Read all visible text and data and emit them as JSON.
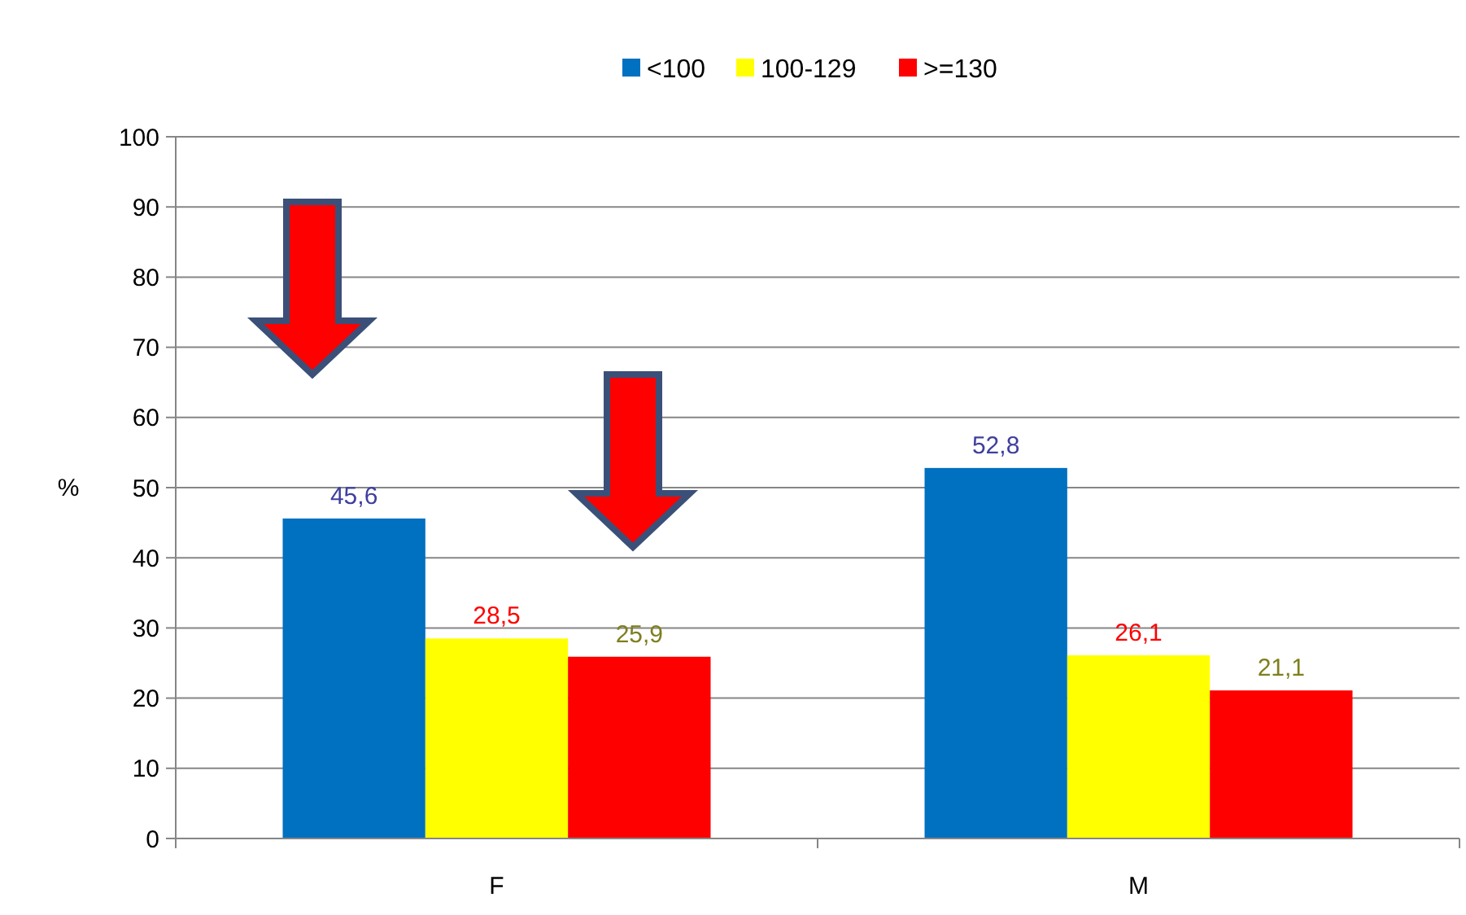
{
  "chart_data": {
    "type": "bar",
    "ylabel": "%",
    "categories": [
      "F",
      "M"
    ],
    "series": [
      {
        "name": "<100",
        "color": "#0070c0",
        "values": [
          45.6,
          52.8
        ],
        "value_labels": [
          "45,6",
          "52,8"
        ]
      },
      {
        "name": "100-129",
        "color": "#ffff00",
        "values": [
          28.5,
          26.1
        ],
        "value_labels": [
          "28,5",
          "26,1"
        ]
      },
      {
        "name": ">=130",
        "color": "#ff0000",
        "values": [
          25.9,
          21.1
        ],
        "value_labels": [
          "25,9",
          "21,1"
        ]
      }
    ],
    "ylim": [
      0,
      100
    ],
    "yticks": [
      0,
      10,
      20,
      30,
      40,
      50,
      60,
      70,
      80,
      90,
      100
    ],
    "grid": "y",
    "legend": "top"
  }
}
